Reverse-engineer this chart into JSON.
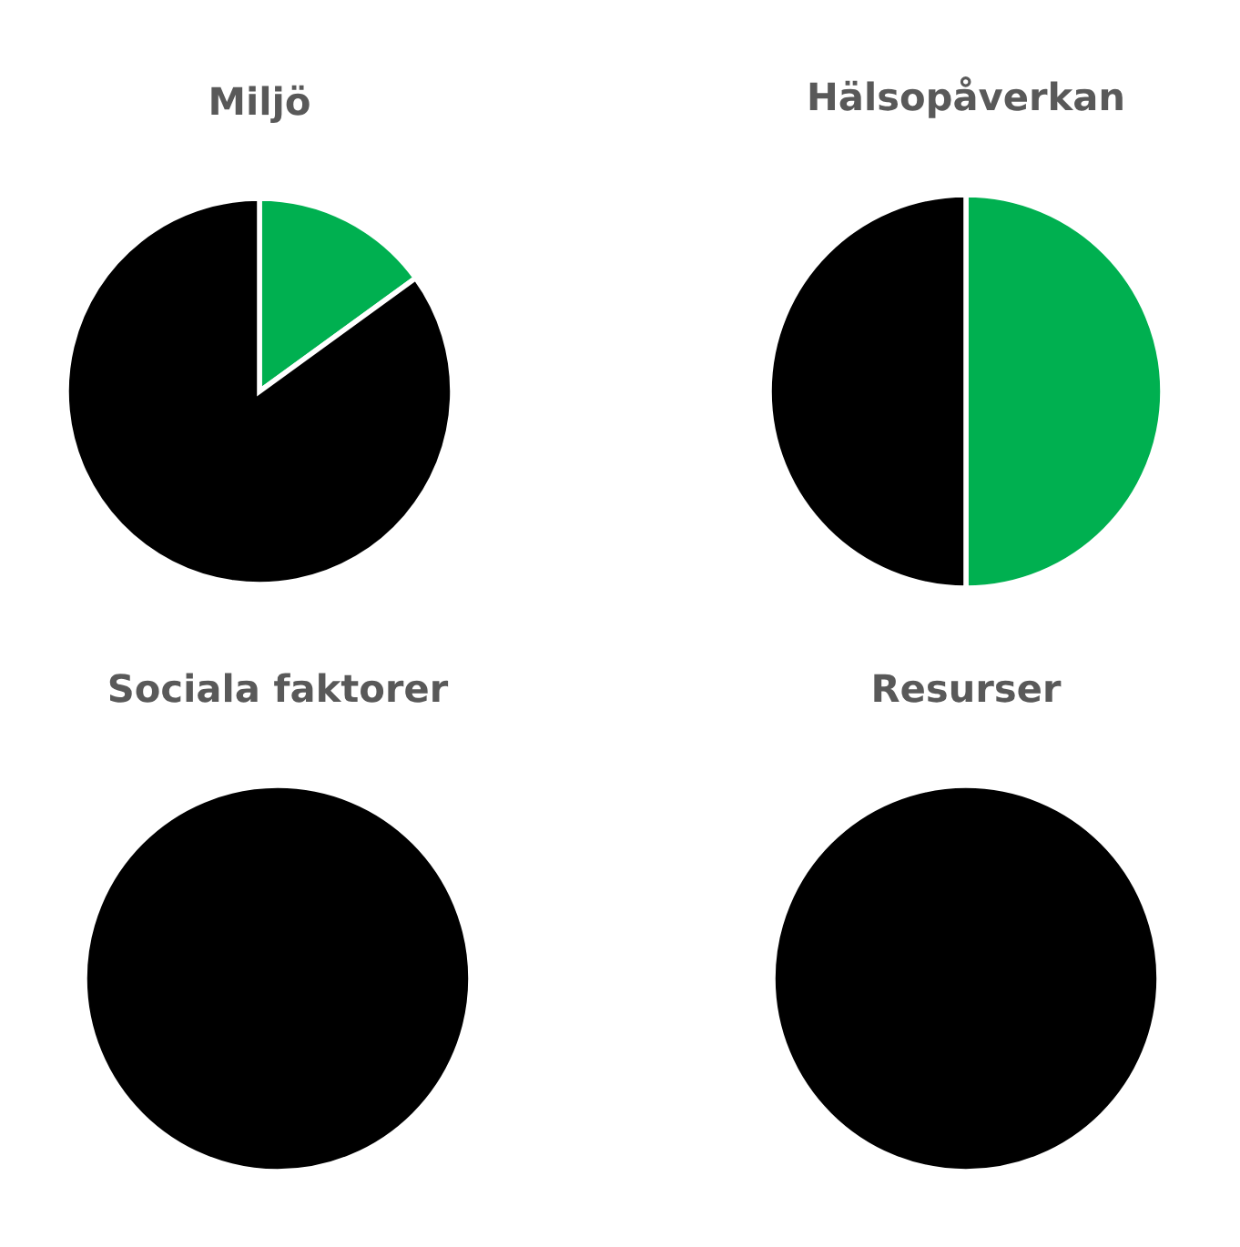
{
  "chart_data": [
    {
      "type": "pie",
      "title": "Miljö",
      "categories": [
        null,
        null
      ],
      "values": [
        15,
        85
      ],
      "colors": [
        "#00b050",
        "#000000"
      ]
    },
    {
      "type": "pie",
      "title": "Hälsopåverkan",
      "categories": [
        null,
        null
      ],
      "values": [
        50,
        50
      ],
      "colors": [
        "#00b050",
        "#000000"
      ]
    },
    {
      "type": "pie",
      "title": "Sociala faktorer",
      "categories": [
        null,
        null
      ],
      "values": [
        0,
        100
      ],
      "colors": [
        "#00b050",
        "#000000"
      ]
    },
    {
      "type": "pie",
      "title": "Resurser",
      "categories": [
        null,
        null
      ],
      "values": [
        0,
        100
      ],
      "colors": [
        "#00b050",
        "#000000"
      ]
    }
  ]
}
